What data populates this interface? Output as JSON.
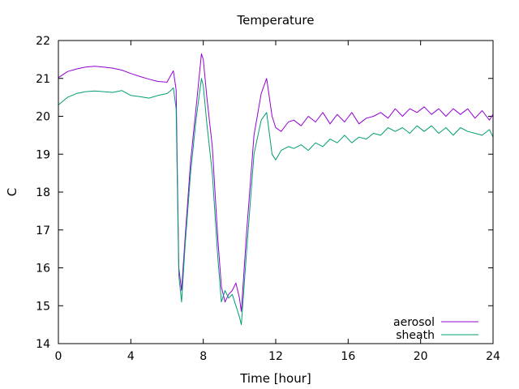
{
  "chart_data": {
    "type": "line",
    "title": "Temperature",
    "xlabel": "Time [hour]",
    "ylabel": "C",
    "xlim": [
      0,
      24
    ],
    "ylim": [
      14,
      22
    ],
    "xticks": [
      0,
      4,
      8,
      12,
      16,
      20,
      24
    ],
    "yticks": [
      14,
      15,
      16,
      17,
      18,
      19,
      20,
      21,
      22
    ],
    "grid": false,
    "legend_position": "bottom-right",
    "series": [
      {
        "name": "aerosol",
        "color": "#9400d3",
        "x": [
          0,
          0.5,
          1,
          1.5,
          2,
          2.5,
          3,
          3.5,
          4,
          4.5,
          5,
          5.5,
          6,
          6.2,
          6.35,
          6.5,
          6.65,
          6.8,
          7.0,
          7.3,
          7.6,
          7.9,
          8.0,
          8.2,
          8.5,
          8.8,
          9.0,
          9.2,
          9.4,
          9.6,
          9.8,
          10.0,
          10.1,
          10.4,
          10.8,
          11.2,
          11.5,
          11.8,
          12.0,
          12.3,
          12.7,
          13.0,
          13.4,
          13.8,
          14.2,
          14.6,
          15.0,
          15.4,
          15.8,
          16.2,
          16.6,
          17.0,
          17.4,
          17.8,
          18.2,
          18.6,
          19.0,
          19.4,
          19.8,
          20.2,
          20.6,
          21.0,
          21.4,
          21.8,
          22.2,
          22.6,
          23.0,
          23.4,
          23.8,
          24.0
        ],
        "values": [
          21.02,
          21.18,
          21.25,
          21.3,
          21.32,
          21.3,
          21.27,
          21.22,
          21.13,
          21.05,
          20.98,
          20.92,
          20.9,
          21.08,
          21.2,
          20.7,
          16.0,
          15.4,
          16.8,
          18.8,
          20.2,
          21.65,
          21.5,
          20.5,
          19.2,
          16.8,
          15.5,
          15.1,
          15.3,
          15.4,
          15.6,
          15.2,
          14.85,
          17.0,
          19.5,
          20.6,
          21.0,
          20.0,
          19.7,
          19.6,
          19.85,
          19.9,
          19.75,
          20.0,
          19.85,
          20.1,
          19.8,
          20.05,
          19.85,
          20.1,
          19.8,
          19.95,
          20.0,
          20.1,
          19.95,
          20.2,
          20.0,
          20.2,
          20.1,
          20.25,
          20.05,
          20.2,
          20.0,
          20.2,
          20.05,
          20.2,
          19.95,
          20.15,
          19.9,
          20.05
        ]
      },
      {
        "name": "sheath",
        "color": "#009e73",
        "x": [
          0,
          0.5,
          1,
          1.5,
          2,
          2.5,
          3,
          3.5,
          4,
          4.5,
          5,
          5.5,
          6,
          6.2,
          6.35,
          6.5,
          6.65,
          6.8,
          7.0,
          7.3,
          7.6,
          7.9,
          8.0,
          8.2,
          8.5,
          8.8,
          9.0,
          9.2,
          9.4,
          9.6,
          9.8,
          10.0,
          10.1,
          10.4,
          10.8,
          11.2,
          11.5,
          11.8,
          12.0,
          12.3,
          12.7,
          13.0,
          13.4,
          13.8,
          14.2,
          14.6,
          15.0,
          15.4,
          15.8,
          16.2,
          16.6,
          17.0,
          17.4,
          17.8,
          18.2,
          18.6,
          19.0,
          19.4,
          19.8,
          20.2,
          20.6,
          21.0,
          21.4,
          21.8,
          22.2,
          22.6,
          23.0,
          23.4,
          23.8,
          24.0
        ],
        "values": [
          20.3,
          20.5,
          20.6,
          20.65,
          20.67,
          20.65,
          20.63,
          20.68,
          20.55,
          20.52,
          20.48,
          20.55,
          20.6,
          20.68,
          20.75,
          20.2,
          15.8,
          15.1,
          16.6,
          18.5,
          19.9,
          21.0,
          20.8,
          19.8,
          18.5,
          16.3,
          15.1,
          15.4,
          15.2,
          15.3,
          15.0,
          14.7,
          14.5,
          16.5,
          19.0,
          19.9,
          20.1,
          19.0,
          18.85,
          19.1,
          19.2,
          19.15,
          19.25,
          19.1,
          19.3,
          19.2,
          19.4,
          19.3,
          19.5,
          19.3,
          19.45,
          19.4,
          19.55,
          19.5,
          19.7,
          19.6,
          19.7,
          19.55,
          19.75,
          19.6,
          19.75,
          19.55,
          19.7,
          19.5,
          19.7,
          19.6,
          19.55,
          19.5,
          19.65,
          19.45
        ]
      }
    ]
  }
}
